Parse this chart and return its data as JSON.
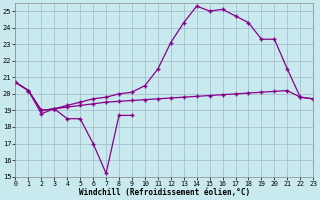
{
  "xlabel": "Windchill (Refroidissement éolien,°C)",
  "bg_color": "#c8eaee",
  "grid_color": "#a0b8c8",
  "line_color": "#880088",
  "xlim": [
    0,
    23
  ],
  "ylim": [
    15,
    25.5
  ],
  "yticks": [
    15,
    16,
    17,
    18,
    19,
    20,
    21,
    22,
    23,
    24,
    25
  ],
  "xticks": [
    0,
    1,
    2,
    3,
    4,
    5,
    6,
    7,
    8,
    9,
    10,
    11,
    12,
    13,
    14,
    15,
    16,
    17,
    18,
    19,
    20,
    21,
    22,
    23
  ],
  "line_zigzag_x": [
    0,
    1,
    2,
    3,
    4,
    5,
    6,
    7,
    8,
    9
  ],
  "line_zigzag_y": [
    20.7,
    20.2,
    18.8,
    19.1,
    18.5,
    18.5,
    17.0,
    15.2,
    18.7,
    18.7
  ],
  "line_flat_x": [
    0,
    1,
    2,
    3,
    4,
    5,
    6,
    7,
    8,
    9,
    10,
    11,
    12,
    13,
    14,
    15,
    16,
    17,
    18,
    19,
    20,
    21,
    22,
    23
  ],
  "line_flat_y": [
    20.7,
    20.2,
    19.0,
    19.1,
    19.2,
    19.3,
    19.4,
    19.5,
    19.55,
    19.6,
    19.65,
    19.7,
    19.75,
    19.8,
    19.85,
    19.9,
    19.95,
    20.0,
    20.05,
    20.1,
    20.15,
    20.2,
    19.8,
    19.7
  ],
  "line_peak_x": [
    0,
    1,
    2,
    3,
    4,
    5,
    6,
    7,
    8,
    9,
    10,
    11,
    12,
    13,
    14,
    15,
    16,
    17,
    18,
    19,
    20,
    21,
    22,
    23
  ],
  "line_peak_y": [
    20.7,
    20.2,
    19.0,
    19.1,
    19.3,
    19.5,
    19.7,
    19.8,
    20.0,
    20.1,
    20.5,
    21.5,
    23.1,
    24.3,
    25.3,
    25.0,
    25.1,
    24.7,
    24.3,
    23.3,
    23.3,
    21.5,
    19.8,
    19.7
  ]
}
